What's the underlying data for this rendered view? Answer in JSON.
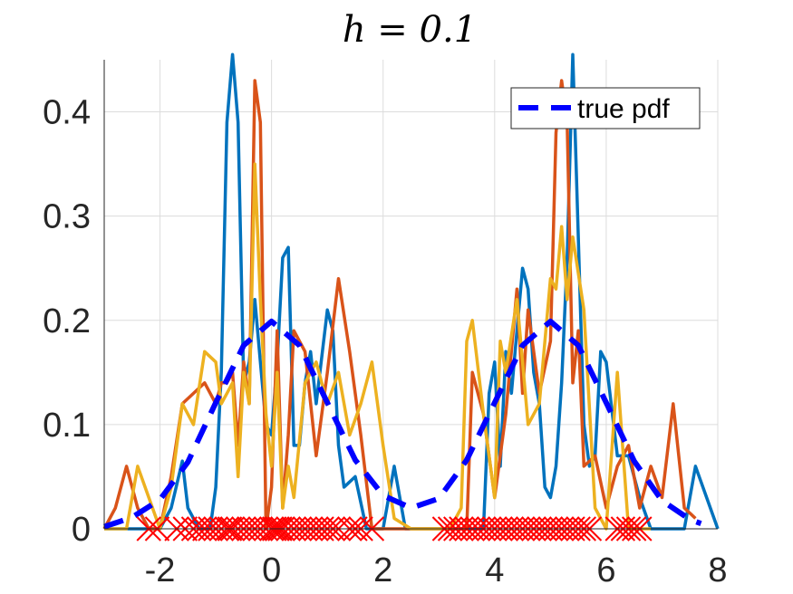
{
  "chart_data": {
    "type": "line",
    "title": "h = 0.1",
    "xlabel": "",
    "ylabel": "",
    "xlim": [
      -3,
      8
    ],
    "ylim": [
      0,
      0.45
    ],
    "grid": true,
    "legend_position": "top-right",
    "xticks": [
      "-2",
      "0",
      "2",
      "4",
      "6",
      "8"
    ],
    "yticks": [
      "0",
      "0.1",
      "0.2",
      "0.3",
      "0.4"
    ],
    "series": [
      {
        "name": "true pdf",
        "style": "dashed",
        "color": "#0000ff",
        "x": [
          -3.0,
          -2.5,
          -2.0,
          -1.5,
          -1.0,
          -0.5,
          0.0,
          0.5,
          1.0,
          1.5,
          2.0,
          2.5,
          3.0,
          3.5,
          4.0,
          4.5,
          5.0,
          5.5,
          6.0,
          6.5,
          7.0,
          7.5,
          7.7
        ],
        "y": [
          0.002,
          0.011,
          0.028,
          0.064,
          0.121,
          0.176,
          0.199,
          0.176,
          0.121,
          0.066,
          0.032,
          0.02,
          0.029,
          0.066,
          0.121,
          0.176,
          0.199,
          0.176,
          0.121,
          0.065,
          0.027,
          0.009,
          0.005
        ]
      },
      {
        "color": "#0072bd",
        "x": [
          -3.0,
          -2.5,
          -2.0,
          -1.8,
          -1.6,
          -1.5,
          -1.3,
          -1.1,
          -1.0,
          -0.9,
          -0.8,
          -0.7,
          -0.6,
          -0.5,
          -0.4,
          -0.3,
          -0.2,
          -0.1,
          0.0,
          0.1,
          0.2,
          0.3,
          0.4,
          0.5,
          0.6,
          0.7,
          0.8,
          1.0,
          1.1,
          1.2,
          1.3,
          1.5,
          1.7,
          2.0,
          2.2,
          2.4,
          2.6,
          3.0,
          3.4,
          3.6,
          3.8,
          3.9,
          4.0,
          4.1,
          4.2,
          4.3,
          4.4,
          4.5,
          4.6,
          4.7,
          4.8,
          4.9,
          5.0,
          5.1,
          5.2,
          5.3,
          5.4,
          5.5,
          5.6,
          5.7,
          5.8,
          5.9,
          6.0,
          6.2,
          6.4,
          6.6,
          6.8,
          7.0,
          7.2,
          7.4,
          7.6,
          7.8,
          8.0
        ],
        "y": [
          0.0,
          0.0,
          0.0,
          0.02,
          0.065,
          0.02,
          0.0,
          0.0,
          0.04,
          0.15,
          0.39,
          0.455,
          0.39,
          0.14,
          0.16,
          0.22,
          0.16,
          0.1,
          0.09,
          0.16,
          0.26,
          0.27,
          0.08,
          0.08,
          0.14,
          0.17,
          0.12,
          0.21,
          0.19,
          0.08,
          0.04,
          0.05,
          0.0,
          0.0,
          0.06,
          0.0,
          0.0,
          0.0,
          0.0,
          0.0,
          0.0,
          0.13,
          0.16,
          0.06,
          0.17,
          0.13,
          0.19,
          0.25,
          0.23,
          0.15,
          0.12,
          0.04,
          0.03,
          0.06,
          0.14,
          0.26,
          0.455,
          0.28,
          0.1,
          0.06,
          0.07,
          0.17,
          0.16,
          0.07,
          0.07,
          0.03,
          0.0,
          0.0,
          0.0,
          0.0,
          0.06,
          0.03,
          0.0
        ]
      },
      {
        "color": "#d95319",
        "x": [
          -3.0,
          -2.8,
          -2.6,
          -2.4,
          -2.2,
          -2.0,
          -1.8,
          -1.6,
          -1.4,
          -1.2,
          -1.0,
          -0.9,
          -0.8,
          -0.7,
          -0.6,
          -0.5,
          -0.4,
          -0.3,
          -0.2,
          -0.1,
          0.0,
          0.1,
          0.2,
          0.3,
          0.4,
          0.6,
          0.8,
          1.0,
          1.2,
          1.4,
          1.6,
          1.8,
          2.0,
          2.5,
          3.0,
          3.5,
          3.6,
          3.8,
          4.0,
          4.2,
          4.4,
          4.5,
          4.6,
          4.8,
          5.0,
          5.1,
          5.2,
          5.3,
          5.4,
          5.5,
          5.6,
          5.8,
          6.0,
          6.2,
          6.4,
          6.6,
          6.8,
          7.0,
          7.2,
          7.4,
          7.6
        ],
        "y": [
          0.0,
          0.02,
          0.06,
          0.02,
          0.0,
          0.0,
          0.05,
          0.12,
          0.13,
          0.14,
          0.12,
          0.14,
          0.14,
          0.15,
          0.08,
          0.16,
          0.12,
          0.43,
          0.39,
          0.0,
          0.04,
          0.19,
          0.02,
          0.09,
          0.19,
          0.17,
          0.07,
          0.15,
          0.24,
          0.17,
          0.09,
          0.0,
          0.0,
          0.0,
          0.0,
          0.0,
          0.15,
          0.11,
          0.03,
          0.11,
          0.23,
          0.13,
          0.21,
          0.13,
          0.18,
          0.38,
          0.43,
          0.39,
          0.14,
          0.19,
          0.06,
          0.07,
          0.02,
          0.06,
          0.08,
          0.02,
          0.06,
          0.03,
          0.12,
          0.02,
          0.01
        ]
      },
      {
        "color": "#edb120",
        "x": [
          -3.0,
          -2.6,
          -2.4,
          -2.2,
          -2.0,
          -1.8,
          -1.6,
          -1.4,
          -1.2,
          -1.0,
          -0.9,
          -0.8,
          -0.7,
          -0.6,
          -0.5,
          -0.4,
          -0.3,
          -0.2,
          -0.1,
          0.0,
          0.1,
          0.2,
          0.3,
          0.4,
          0.6,
          0.8,
          1.0,
          1.2,
          1.4,
          1.6,
          1.8,
          2.0,
          2.2,
          2.5,
          3.0,
          3.2,
          3.4,
          3.5,
          3.6,
          3.8,
          4.0,
          4.1,
          4.2,
          4.4,
          4.5,
          4.6,
          4.8,
          5.0,
          5.1,
          5.2,
          5.3,
          5.4,
          5.6,
          5.8,
          6.0,
          6.2,
          6.4,
          6.6,
          6.8
        ],
        "y": [
          0.0,
          0.0,
          0.06,
          0.03,
          0.0,
          0.04,
          0.12,
          0.1,
          0.17,
          0.16,
          0.12,
          0.13,
          0.14,
          0.05,
          0.15,
          0.12,
          0.35,
          0.22,
          0.11,
          0.06,
          0.15,
          0.02,
          0.06,
          0.03,
          0.14,
          0.16,
          0.12,
          0.15,
          0.09,
          0.12,
          0.16,
          0.08,
          0.01,
          0.0,
          0.0,
          0.0,
          0.02,
          0.18,
          0.2,
          0.11,
          0.03,
          0.18,
          0.15,
          0.22,
          0.16,
          0.1,
          0.12,
          0.24,
          0.23,
          0.29,
          0.22,
          0.28,
          0.21,
          0.02,
          0.0,
          0.15,
          0.0,
          0.0,
          0.0
        ]
      }
    ],
    "sample_markers": {
      "symbol": "x",
      "color": "#ff0000",
      "x": [
        -2.2,
        -2.05,
        -1.7,
        -1.55,
        -1.4,
        -1.3,
        -1.2,
        -1.1,
        -1.0,
        -0.9,
        -0.8,
        -0.75,
        -0.7,
        -0.6,
        -0.5,
        -0.4,
        -0.3,
        -0.2,
        -0.1,
        0.0,
        0.05,
        0.1,
        0.15,
        0.2,
        0.3,
        0.4,
        0.5,
        0.6,
        0.7,
        0.8,
        0.9,
        1.0,
        1.1,
        1.2,
        1.4,
        1.5,
        1.6,
        1.8,
        3.1,
        3.2,
        3.3,
        3.4,
        3.5,
        3.6,
        3.7,
        3.8,
        3.9,
        4.0,
        4.1,
        4.2,
        4.3,
        4.4,
        4.5,
        4.6,
        4.7,
        4.8,
        4.9,
        5.0,
        5.1,
        5.2,
        5.3,
        5.4,
        5.5,
        5.6,
        5.7,
        6.2,
        6.3,
        6.4,
        6.5,
        6.6
      ]
    }
  }
}
